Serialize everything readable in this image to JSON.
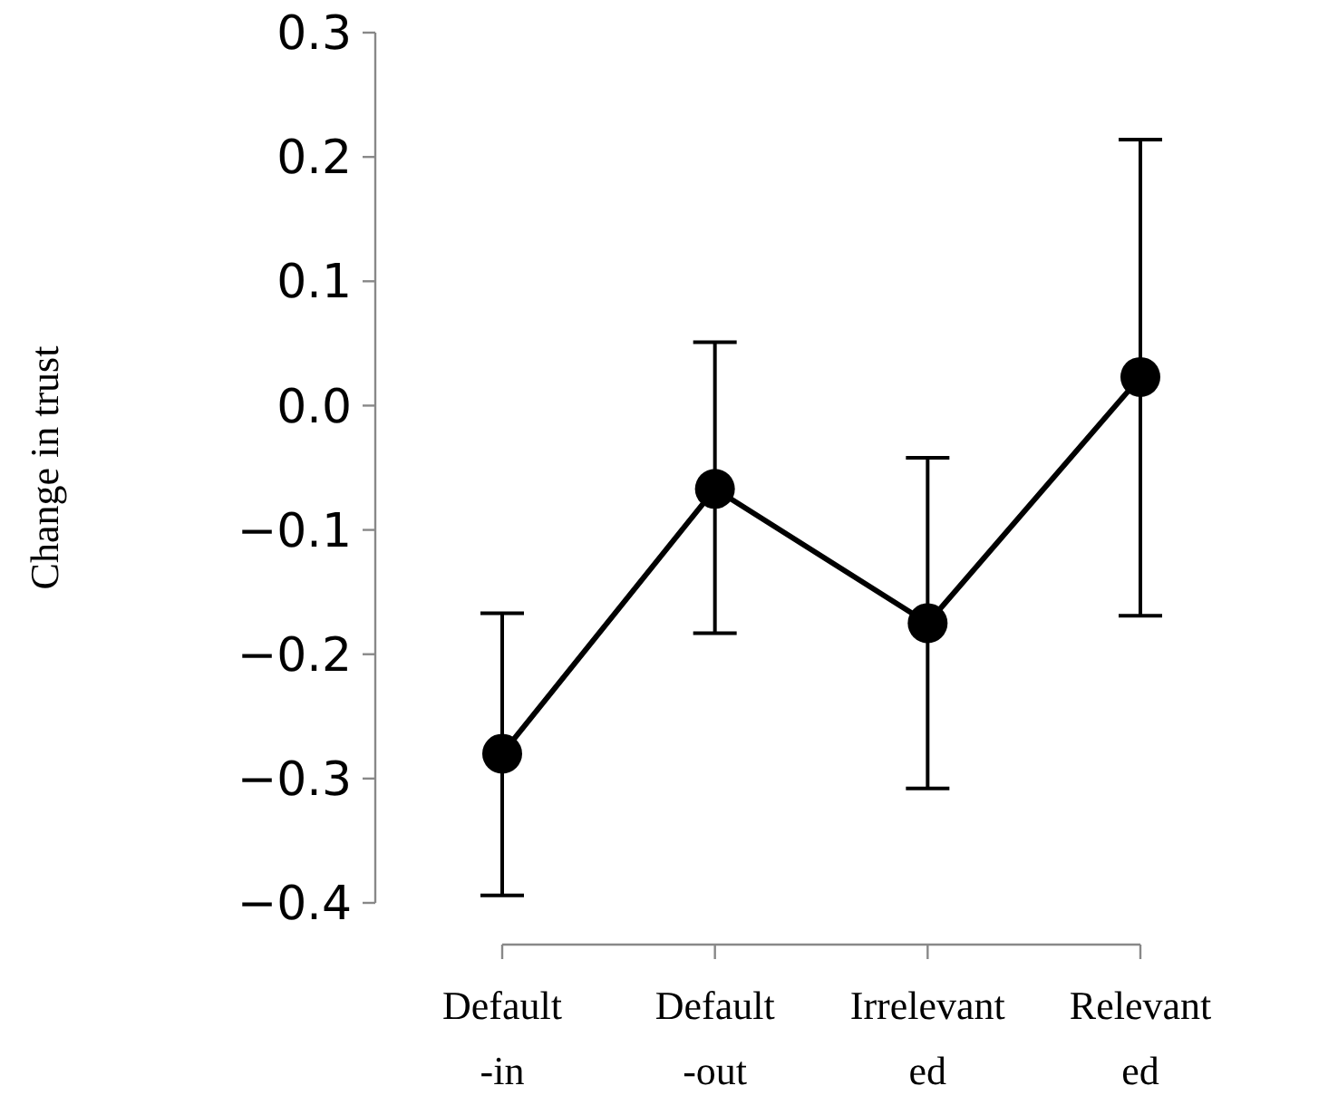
{
  "chart_data": {
    "type": "line",
    "ylabel": "Change in trust",
    "categories": [
      "Default\n-in",
      "Default\n-out",
      "Irrelevant\ned",
      "Relevant\ned"
    ],
    "series": [
      {
        "color": "#000000",
        "values": [
          -0.28,
          -0.067,
          -0.175,
          0.023
        ],
        "errors": [
          [
            -0.394,
            -0.167
          ],
          [
            -0.183,
            0.051
          ],
          [
            -0.308,
            -0.042
          ],
          [
            -0.169,
            0.214
          ]
        ]
      }
    ],
    "ylim": [
      -0.4,
      0.3
    ],
    "yticks": [
      {
        "value": -0.4,
        "label": "−0.4"
      },
      {
        "value": -0.3,
        "label": "−0.3"
      },
      {
        "value": -0.2,
        "label": "−0.2"
      },
      {
        "value": -0.1,
        "label": "−0.1"
      },
      {
        "value": 0,
        "label": "0.0"
      },
      {
        "value": 0.1,
        "label": "0.1"
      },
      {
        "value": 0.2,
        "label": "0.2"
      },
      {
        "value": 0.3,
        "label": "0.3"
      }
    ],
    "marker": "circle",
    "line_style": "solid",
    "grid": false
  }
}
